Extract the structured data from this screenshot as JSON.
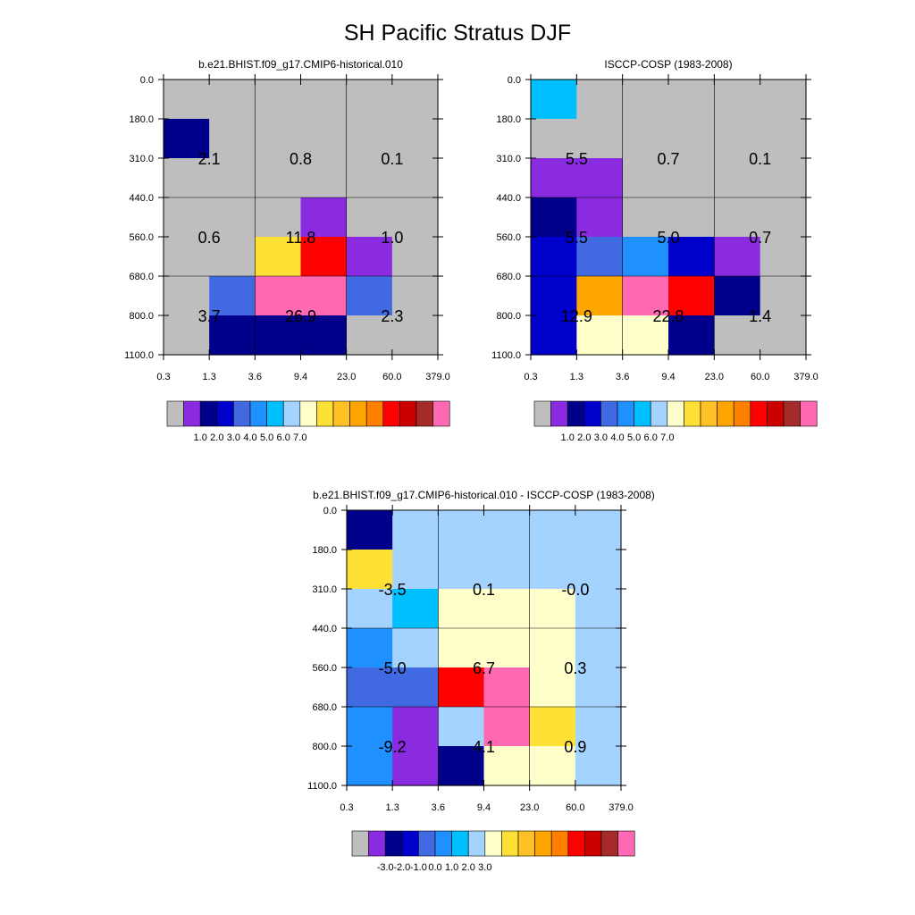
{
  "figure_title": "SH Pacific Stratus DJF",
  "chart_data": [
    {
      "type": "heatmap",
      "title": "b.e21.BHIST.f09_g17.CMIP6-historical.010",
      "x_ticks": [
        "0.3",
        "1.3",
        "3.6",
        "9.4",
        "23.0",
        "60.0",
        "379.0"
      ],
      "y_ticks": [
        "0.0",
        "180.0",
        "310.0",
        "440.0",
        "560.0",
        "680.0",
        "800.0",
        "1100.0"
      ],
      "cell_colors": [
        [
          "#bebebe",
          "#bebebe",
          "#bebebe",
          "#bebebe",
          "#bebebe",
          "#bebebe"
        ],
        [
          "#00008b",
          "#bebebe",
          "#bebebe",
          "#bebebe",
          "#bebebe",
          "#bebebe"
        ],
        [
          "#bebebe",
          "#bebebe",
          "#bebebe",
          "#bebebe",
          "#bebebe",
          "#bebebe"
        ],
        [
          "#bebebe",
          "#bebebe",
          "#bebebe",
          "#8a2be2",
          "#bebebe",
          "#bebebe"
        ],
        [
          "#bebebe",
          "#bebebe",
          "#ffe135",
          "#ff0000",
          "#8a2be2",
          "#bebebe"
        ],
        [
          "#bebebe",
          "#4169e1",
          "#ff69b4",
          "#ff69b4",
          "#4169e1",
          "#bebebe"
        ],
        [
          "#bebebe",
          "#00008b",
          "#00008b",
          "#00008b",
          "#bebebe",
          "#bebebe"
        ]
      ],
      "block_labels": [
        [
          "2.1",
          "0.8",
          "0.1"
        ],
        [
          "0.6",
          "11.8",
          "1.0"
        ],
        [
          "3.7",
          "26.9",
          "2.3"
        ]
      ],
      "colorbar": {
        "colors": [
          "#bebebe",
          "#8a2be2",
          "#00008b",
          "#0000cd",
          "#4169e1",
          "#1e90ff",
          "#00bfff",
          "#a4d3ff",
          "#ffffcc",
          "#ffe135",
          "#ffc125",
          "#ffa500",
          "#ff7f00",
          "#ff0000",
          "#cd0000",
          "#a52a2a",
          "#ff69b4"
        ],
        "tick_labels": [
          "1.0",
          "2.0",
          "3.0",
          "4.0",
          "5.0",
          "6.0",
          "7.0"
        ]
      }
    },
    {
      "type": "heatmap",
      "title": "ISCCP-COSP (1983-2008)",
      "x_ticks": [
        "0.3",
        "1.3",
        "3.6",
        "9.4",
        "23.0",
        "60.0",
        "379.0"
      ],
      "y_ticks": [
        "0.0",
        "180.0",
        "310.0",
        "440.0",
        "560.0",
        "680.0",
        "800.0",
        "1100.0"
      ],
      "cell_colors": [
        [
          "#00bfff",
          "#bebebe",
          "#bebebe",
          "#bebebe",
          "#bebebe",
          "#bebebe"
        ],
        [
          "#bebebe",
          "#bebebe",
          "#bebebe",
          "#bebebe",
          "#bebebe",
          "#bebebe"
        ],
        [
          "#8a2be2",
          "#8a2be2",
          "#bebebe",
          "#bebebe",
          "#bebebe",
          "#bebebe"
        ],
        [
          "#00008b",
          "#8a2be2",
          "#bebebe",
          "#bebebe",
          "#bebebe",
          "#bebebe"
        ],
        [
          "#0000cd",
          "#4169e1",
          "#1e90ff",
          "#0000cd",
          "#8a2be2",
          "#bebebe"
        ],
        [
          "#0000cd",
          "#ffa500",
          "#ff69b4",
          "#ff0000",
          "#00008b",
          "#bebebe"
        ],
        [
          "#0000cd",
          "#ffffcc",
          "#ffffcc",
          "#00008b",
          "#bebebe",
          "#bebebe"
        ]
      ],
      "block_labels": [
        [
          "5.5",
          "0.7",
          "0.1"
        ],
        [
          "5.5",
          "5.0",
          "0.7"
        ],
        [
          "12.9",
          "22.8",
          "1.4"
        ]
      ],
      "colorbar": {
        "colors": [
          "#bebebe",
          "#8a2be2",
          "#00008b",
          "#0000cd",
          "#4169e1",
          "#1e90ff",
          "#00bfff",
          "#a4d3ff",
          "#ffffcc",
          "#ffe135",
          "#ffc125",
          "#ffa500",
          "#ff7f00",
          "#ff0000",
          "#cd0000",
          "#a52a2a",
          "#ff69b4"
        ],
        "tick_labels": [
          "1.0",
          "2.0",
          "3.0",
          "4.0",
          "5.0",
          "6.0",
          "7.0"
        ]
      }
    },
    {
      "type": "heatmap",
      "title": "b.e21.BHIST.f09_g17.CMIP6-historical.010 - ISCCP-COSP (1983-2008)",
      "x_ticks": [
        "0.3",
        "1.3",
        "3.6",
        "9.4",
        "23.0",
        "60.0",
        "379.0"
      ],
      "y_ticks": [
        "0.0",
        "180.0",
        "310.0",
        "440.0",
        "560.0",
        "680.0",
        "800.0",
        "1100.0"
      ],
      "cell_colors": [
        [
          "#00008b",
          "#a4d3ff",
          "#a4d3ff",
          "#a4d3ff",
          "#a4d3ff",
          "#a4d3ff"
        ],
        [
          "#ffe135",
          "#a4d3ff",
          "#a4d3ff",
          "#a4d3ff",
          "#a4d3ff",
          "#a4d3ff"
        ],
        [
          "#a4d3ff",
          "#00bfff",
          "#ffffcc",
          "#ffffcc",
          "#ffffcc",
          "#a4d3ff"
        ],
        [
          "#1e90ff",
          "#a4d3ff",
          "#ffffcc",
          "#ffffcc",
          "#ffffcc",
          "#a4d3ff"
        ],
        [
          "#4169e1",
          "#4169e1",
          "#ff0000",
          "#ff69b4",
          "#ffffcc",
          "#a4d3ff"
        ],
        [
          "#1e90ff",
          "#8a2be2",
          "#a4d3ff",
          "#ff69b4",
          "#ffe135",
          "#a4d3ff"
        ],
        [
          "#1e90ff",
          "#8a2be2",
          "#00008b",
          "#ffffcc",
          "#ffffcc",
          "#a4d3ff"
        ]
      ],
      "block_labels": [
        [
          "-3.5",
          "0.1",
          "-0.0"
        ],
        [
          "-5.0",
          "6.7",
          "0.3"
        ],
        [
          "-9.2",
          "4.1",
          "0.9"
        ]
      ],
      "colorbar": {
        "colors": [
          "#bebebe",
          "#8a2be2",
          "#00008b",
          "#0000cd",
          "#4169e1",
          "#1e90ff",
          "#00bfff",
          "#a4d3ff",
          "#ffffcc",
          "#ffe135",
          "#ffc125",
          "#ffa500",
          "#ff7f00",
          "#ff0000",
          "#cd0000",
          "#a52a2a",
          "#ff69b4"
        ],
        "tick_labels": [
          "-3.0",
          "-2.0",
          "-1.0",
          "0.0",
          "1.0",
          "2.0",
          "3.0"
        ]
      }
    }
  ]
}
